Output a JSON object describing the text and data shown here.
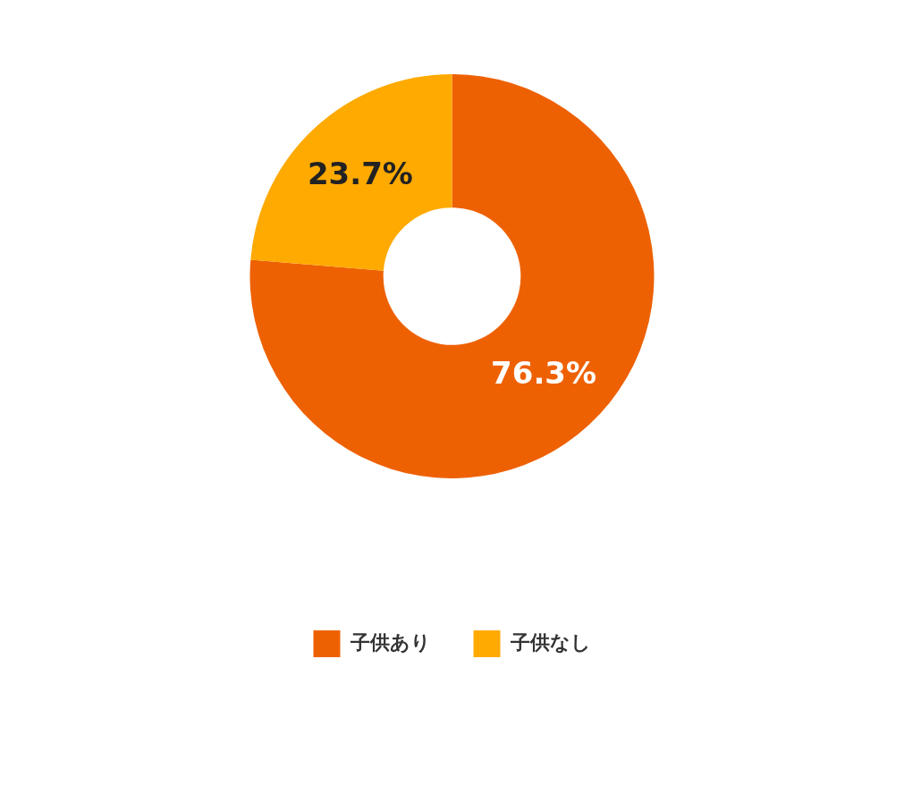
{
  "chart_data": {
    "type": "donut",
    "categories": [
      "子供あり",
      "子供なし"
    ],
    "values": [
      76.3,
      23.7
    ],
    "colors": [
      "#ee6103",
      "#ffaa00"
    ],
    "value_labels": [
      "76.3%",
      "23.7%"
    ],
    "legend": "bottom"
  }
}
